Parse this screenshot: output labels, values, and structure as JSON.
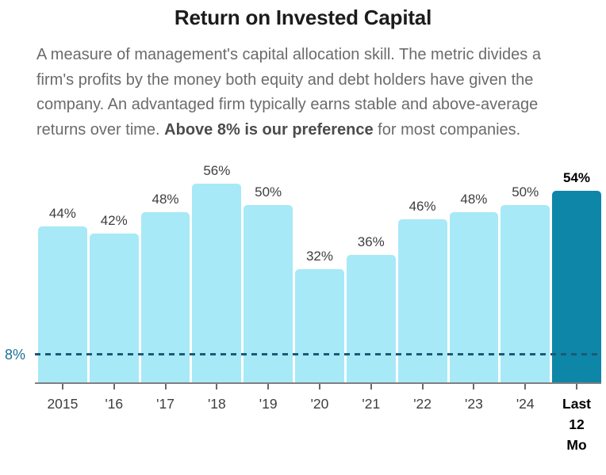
{
  "title": "Return on Invested Capital",
  "description": {
    "text_before": "A measure of management's capital allocation skill. The metric divides a firm's profits by the money both equity and debt holders have given the company. An advantaged firm typically earns stable and above-average returns over time. ",
    "bold_text": "Above 8% is our preference",
    "text_after": " for most companies."
  },
  "chart_data": {
    "type": "bar",
    "title": "Return on Invested Capital",
    "categories": [
      "2015",
      "'16",
      "'17",
      "'18",
      "'19",
      "'20",
      "'21",
      "'22",
      "'23",
      "'24",
      "Last 12 Mo"
    ],
    "values": [
      44,
      42,
      48,
      56,
      50,
      32,
      36,
      46,
      48,
      50,
      54
    ],
    "value_labels": [
      "44%",
      "42%",
      "48%",
      "56%",
      "50%",
      "32%",
      "36%",
      "46%",
      "48%",
      "50%",
      "54%"
    ],
    "unit": "%",
    "highlight_index": 10,
    "highlight_category": "Last 12 Mo",
    "reference_line": {
      "value": 8,
      "label": "8%",
      "style": "dashed"
    },
    "ylim": [
      0,
      60
    ],
    "grid": false,
    "legend": false,
    "bar_color": "#a7e9f6",
    "highlight_color": "#0e86a8",
    "reference_line_color": "#1d5a75",
    "reference_label_color": "#1c7096",
    "axis_color": "#808080",
    "label_color": "#3e3e3e"
  }
}
